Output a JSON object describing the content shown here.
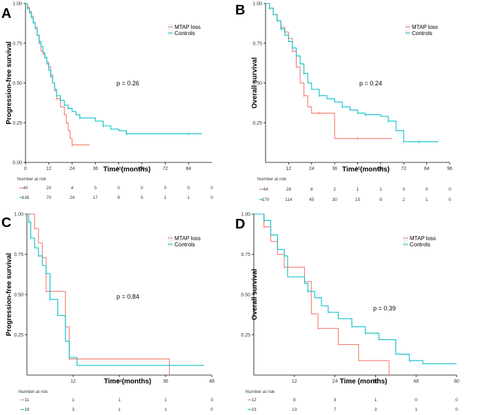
{
  "colors": {
    "mtap": "#F8766D",
    "controls": "#00BFC4",
    "axis": "#000000"
  },
  "chart_data": [
    {
      "panel": "A",
      "type": "line",
      "step": true,
      "ylabel": "Progression-free survival",
      "xlabel": "Time (months)",
      "xticks": [
        0,
        12,
        24,
        36,
        48,
        60,
        72,
        84
      ],
      "yticks": [
        1.0,
        0.75,
        0.5,
        0.25,
        0.0
      ],
      "ytick_labels": [
        "1.00",
        "0.75",
        "0.50",
        "0.25",
        "0.00"
      ],
      "xlim": [
        0,
        96
      ],
      "ylim": [
        0,
        1
      ],
      "p_value": "p = 0.26",
      "legend": [
        "MTAP loss",
        "Controls"
      ],
      "series": [
        {
          "name": "MTAP loss",
          "x": [
            0,
            1,
            2,
            3,
            4,
            5,
            6,
            7,
            8,
            9,
            10,
            11,
            12,
            13,
            14,
            15,
            16,
            18,
            20,
            21,
            22,
            23,
            24,
            33
          ],
          "y": [
            1,
            0.975,
            0.95,
            0.92,
            0.88,
            0.85,
            0.8,
            0.75,
            0.7,
            0.68,
            0.66,
            0.63,
            0.6,
            0.55,
            0.5,
            0.45,
            0.4,
            0.35,
            0.3,
            0.25,
            0.2,
            0.15,
            0.11,
            0.11
          ]
        },
        {
          "name": "Controls",
          "x": [
            0,
            1,
            2,
            3,
            4,
            5,
            6,
            7,
            8,
            9,
            10,
            11,
            12,
            13,
            14,
            15,
            16,
            18,
            20,
            22,
            24,
            26,
            28,
            32,
            36,
            40,
            44,
            48,
            52,
            60,
            72,
            84,
            91
          ],
          "y": [
            1,
            0.97,
            0.94,
            0.91,
            0.88,
            0.84,
            0.8,
            0.76,
            0.73,
            0.69,
            0.66,
            0.62,
            0.58,
            0.54,
            0.5,
            0.46,
            0.42,
            0.39,
            0.36,
            0.34,
            0.32,
            0.3,
            0.28,
            0.28,
            0.26,
            0.23,
            0.21,
            0.2,
            0.18,
            0.18,
            0.18,
            0.18,
            0.18
          ]
        }
      ],
      "risk_table": {
        "title": "Number at risk",
        "times": [
          0,
          12,
          24,
          36,
          48,
          60,
          72,
          84,
          96
        ],
        "rows": [
          {
            "name": "MTAP loss",
            "values": [
              "40",
              "20",
              "4",
              "0",
              "0",
              "0",
              "0",
              "0",
              "0"
            ]
          },
          {
            "name": "Controls",
            "values": [
              "138",
              "70",
              "24",
              "17",
              "9",
              "5",
              "1",
              "1",
              "0"
            ]
          }
        ]
      }
    },
    {
      "panel": "B",
      "type": "line",
      "step": true,
      "ylabel": "Overall survival",
      "xlabel": "Time (months)",
      "xticks": [
        12,
        24,
        36,
        48,
        60,
        72,
        84,
        96
      ],
      "yticks": [
        1.0,
        0.75,
        0.5,
        0.25
      ],
      "ytick_labels": [
        "1.00",
        "0.75",
        "0.50",
        "0.25"
      ],
      "xlim": [
        0,
        96
      ],
      "ylim": [
        0,
        1
      ],
      "p_value": "p = 0.24",
      "legend": [
        "MTAP loss",
        "Controls"
      ],
      "series": [
        {
          "name": "MTAP loss",
          "x": [
            0,
            2,
            4,
            6,
            8,
            10,
            12,
            14,
            16,
            18,
            20,
            22,
            24,
            28,
            32,
            36,
            48,
            60,
            66
          ],
          "y": [
            1,
            0.97,
            0.93,
            0.89,
            0.85,
            0.82,
            0.78,
            0.7,
            0.6,
            0.5,
            0.42,
            0.35,
            0.31,
            0.31,
            0.31,
            0.15,
            0.15,
            0.15,
            0.15
          ]
        },
        {
          "name": "Controls",
          "x": [
            0,
            2,
            4,
            6,
            8,
            10,
            12,
            14,
            16,
            18,
            20,
            22,
            24,
            28,
            32,
            36,
            40,
            44,
            48,
            52,
            56,
            60,
            64,
            68,
            72,
            80,
            90
          ],
          "y": [
            1,
            0.97,
            0.93,
            0.89,
            0.84,
            0.8,
            0.76,
            0.72,
            0.67,
            0.62,
            0.56,
            0.5,
            0.46,
            0.42,
            0.4,
            0.38,
            0.35,
            0.33,
            0.31,
            0.3,
            0.3,
            0.29,
            0.26,
            0.2,
            0.13,
            0.13,
            0.13
          ]
        }
      ],
      "risk_table": {
        "title": "Number at risk",
        "times": [
          0,
          12,
          24,
          36,
          48,
          60,
          72,
          84,
          96
        ],
        "rows": [
          {
            "name": "MTAP loss",
            "values": [
              "44",
              "28",
              "8",
              "2",
              "1",
              "1",
              "0",
              "0",
              "0"
            ]
          },
          {
            "name": "Controls",
            "values": [
              "170",
              "114",
              "45",
              "30",
              "15",
              "9",
              "2",
              "1",
              "0"
            ]
          }
        ]
      }
    },
    {
      "panel": "C",
      "type": "line",
      "step": true,
      "ylabel": "Progression-free survival",
      "xlabel": "Time (months)",
      "xticks": [
        12,
        24,
        36,
        48
      ],
      "yticks": [
        1.0,
        0.75,
        0.5,
        0.25
      ],
      "ytick_labels": [
        "1.00",
        "0.75",
        "0.50",
        "0.25"
      ],
      "xlim": [
        0,
        48
      ],
      "ylim": [
        0,
        1
      ],
      "p_value": "p = 0.84",
      "legend": [
        "MTAP loss",
        "Controls"
      ],
      "series": [
        {
          "name": "MTAP loss",
          "x": [
            0,
            2,
            3,
            4,
            5,
            9,
            10,
            11,
            36,
            37
          ],
          "y": [
            1,
            0.91,
            0.82,
            0.73,
            0.52,
            0.52,
            0.3,
            0.1,
            0.1,
            0
          ]
        },
        {
          "name": "Controls",
          "x": [
            0,
            0.5,
            1,
            2,
            3,
            4,
            5,
            6,
            8,
            10,
            11,
            13,
            46
          ],
          "y": [
            1,
            0.95,
            0.85,
            0.79,
            0.74,
            0.68,
            0.63,
            0.47,
            0.37,
            0.21,
            0.11,
            0.06,
            0.06
          ]
        }
      ],
      "risk_table": {
        "title": "Number at risk",
        "times": [
          0,
          12,
          24,
          36,
          48
        ],
        "rows": [
          {
            "name": "MTAP loss",
            "values": [
              "11",
              "1",
              "1",
              "1",
              "0"
            ]
          },
          {
            "name": "Controls",
            "values": [
              "19",
              "3",
              "1",
              "1",
              "0"
            ]
          }
        ]
      }
    },
    {
      "panel": "D",
      "type": "line",
      "step": true,
      "ylabel": "Overall survival",
      "xlabel": "Time (months)",
      "xticks": [
        12,
        24,
        36,
        48,
        60
      ],
      "yticks": [
        1.0,
        0.75,
        0.5,
        0.25
      ],
      "ytick_labels": [
        "1.00",
        "0.75",
        "0.50",
        "0.25"
      ],
      "xlim": [
        0,
        60
      ],
      "ylim": [
        0,
        1
      ],
      "p_value": "p = 0.39",
      "legend": [
        "MTAP loss",
        "Controls"
      ],
      "series": [
        {
          "name": "MTAP loss",
          "x": [
            0,
            3,
            5,
            7,
            9,
            15,
            17,
            19,
            25,
            31,
            40
          ],
          "y": [
            1,
            0.92,
            0.83,
            0.75,
            0.67,
            0.58,
            0.38,
            0.29,
            0.19,
            0.09,
            0
          ]
        },
        {
          "name": "Controls",
          "x": [
            0,
            3,
            5,
            7,
            9,
            10,
            15,
            16,
            18,
            20,
            22,
            25,
            29,
            33,
            37,
            42,
            46,
            50,
            60
          ],
          "y": [
            1,
            0.96,
            0.87,
            0.78,
            0.74,
            0.61,
            0.57,
            0.52,
            0.48,
            0.43,
            0.39,
            0.35,
            0.3,
            0.26,
            0.22,
            0.13,
            0.09,
            0.07,
            0.07
          ]
        }
      ],
      "risk_table": {
        "title": "Number at risk",
        "times": [
          0,
          12,
          24,
          36,
          48,
          60
        ],
        "rows": [
          {
            "name": "MTAP loss",
            "values": [
              "12",
              "8",
              "3",
              "1",
              "0",
              "0"
            ]
          },
          {
            "name": "Controls",
            "values": [
              "23",
              "13",
              "7",
              "3",
              "1",
              "0"
            ]
          }
        ]
      }
    }
  ]
}
